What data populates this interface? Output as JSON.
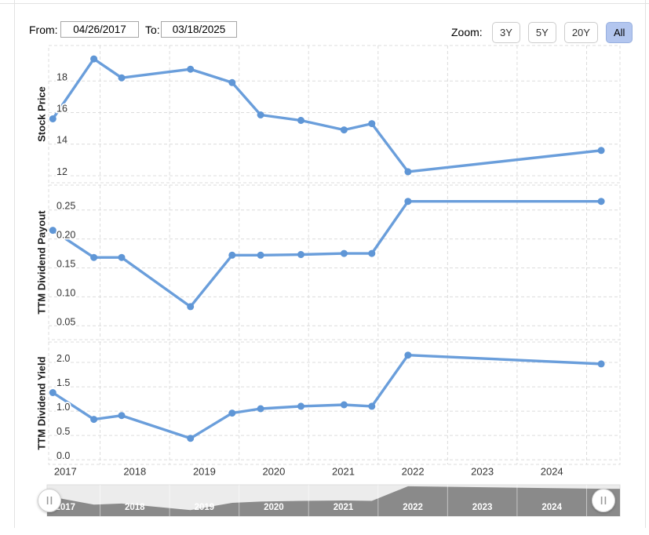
{
  "controls": {
    "from_label": "From:",
    "from_value": "04/26/2017",
    "to_label": "To:",
    "to_value": "03/18/2025",
    "zoom_label": "Zoom:",
    "zoom_buttons": [
      {
        "label": "3Y",
        "active": false
      },
      {
        "label": "5Y",
        "active": false
      },
      {
        "label": "20Y",
        "active": false
      },
      {
        "label": "All",
        "active": true
      }
    ]
  },
  "chart_data": {
    "type": "line",
    "x_years": [
      2017.32,
      2017.91,
      2018.31,
      2019.3,
      2019.9,
      2020.31,
      2020.89,
      2021.51,
      2021.91,
      2022.43,
      2025.21
    ],
    "x_axis": {
      "tick_labels": [
        "2017",
        "2018",
        "2019",
        "2020",
        "2021",
        "2022",
        "2023",
        "2024"
      ],
      "range": [
        2017.26,
        2025.48
      ],
      "gridline_years": [
        2018,
        2019,
        2020,
        2021,
        2022,
        2023,
        2024,
        2025
      ],
      "grid": "dashed"
    },
    "series": [
      {
        "name": "Stock Price",
        "values": [
          15.6,
          19.4,
          18.2,
          18.75,
          17.9,
          15.85,
          15.5,
          14.9,
          15.3,
          12.25,
          13.6
        ],
        "yticks": [
          "12",
          "14",
          "16",
          "18"
        ],
        "ylim": [
          11.55,
          20.25
        ]
      },
      {
        "name": "TTM Dividend Payout",
        "values": [
          0.215,
          0.168,
          0.168,
          0.083,
          0.172,
          0.172,
          0.173,
          0.175,
          0.175,
          0.265,
          0.265
        ],
        "yticks": [
          "0.05",
          "0.10",
          "0.15",
          "0.20",
          "0.25"
        ],
        "ylim": [
          0.026,
          0.293
        ]
      },
      {
        "name": "TTM Dividend Yield",
        "values": [
          1.38,
          0.83,
          0.91,
          0.44,
          0.96,
          1.05,
          1.1,
          1.13,
          1.1,
          2.15,
          1.97
        ],
        "yticks": [
          "0.0",
          "0.5",
          "1.0",
          "1.5",
          "2.0"
        ],
        "ylim": [
          -0.095,
          2.42
        ]
      }
    ],
    "navigator": {
      "year_labels": [
        "2017",
        "2018",
        "2019",
        "2020",
        "2021",
        "2022",
        "2023",
        "2024"
      ],
      "series_shown": "TTM Dividend Yield",
      "handle_glyph": "||"
    }
  },
  "colors": {
    "series_line": "#6a9edb",
    "series_marker": "#5f96d6",
    "grid": "#dcdcdc",
    "tick_text": "#333333",
    "axis_title": "#1a1a1a",
    "zoom_active_bg": "#b3c6ef",
    "zoom_active_border": "#97afdf",
    "button_border": "#cccccc",
    "nav_dark": "#8a8a8a",
    "nav_light": "#ececec",
    "nav_separator": "rgba(255,255,255,0.5)",
    "panel_border": "#e2e2e2"
  }
}
